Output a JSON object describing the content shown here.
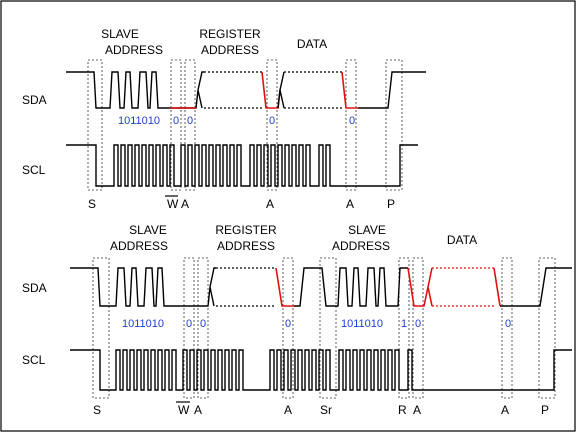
{
  "diagram1": {
    "headers": [
      "SLAVE",
      "ADDRESS",
      "REGISTER",
      "ADDRESS",
      "DATA"
    ],
    "signals": [
      "SDA",
      "SCL"
    ],
    "bits": [
      "1011010",
      "0",
      "0",
      "0",
      "0"
    ],
    "bottom": [
      "S",
      "W",
      "A",
      "A",
      "A",
      "P"
    ]
  },
  "diagram2": {
    "headers": [
      "SLAVE",
      "ADDRESS",
      "REGISTER",
      "ADDRESS",
      "SLAVE",
      "ADDRESS",
      "DATA"
    ],
    "signals": [
      "SDA",
      "SCL"
    ],
    "bits": [
      "1011010",
      "0",
      "0",
      "0",
      "1011010",
      "1",
      "0",
      "0"
    ],
    "bottom": [
      "S",
      "W",
      "A",
      "A",
      "Sr",
      "R",
      "A",
      "A",
      "P"
    ]
  },
  "colors": {
    "wire": "#000000",
    "highlight": "#e01010",
    "bits": "#1f3fd0"
  }
}
